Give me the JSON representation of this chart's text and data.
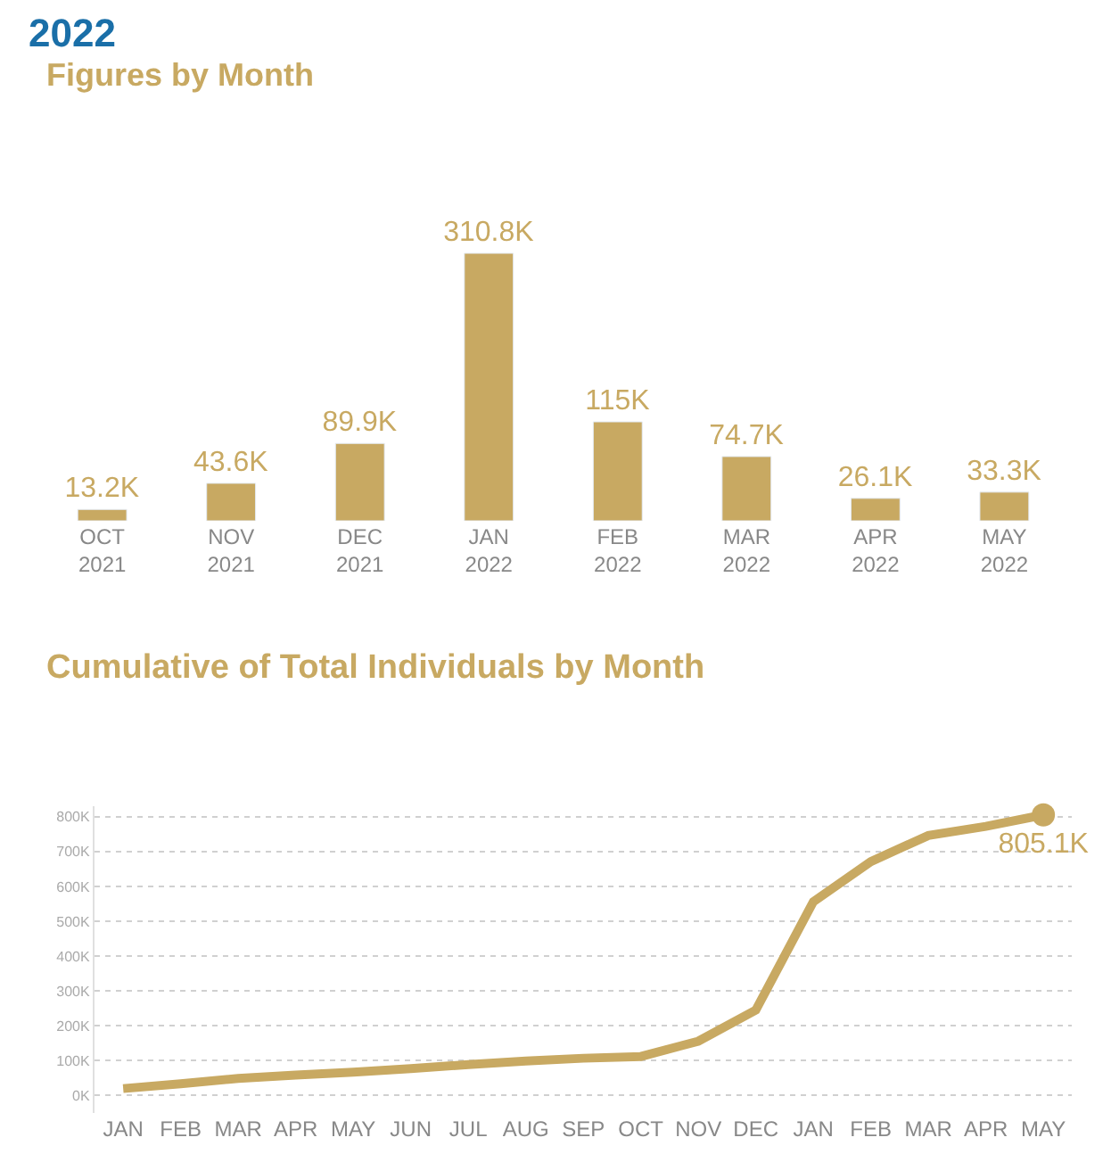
{
  "chart_data": [
    {
      "type": "bar",
      "title": "2022",
      "subtitle": "Figures by Month",
      "categories": [
        "OCT 2021",
        "NOV 2021",
        "DEC 2021",
        "JAN 2022",
        "FEB 2022",
        "MAR 2022",
        "APR 2022",
        "MAY 2022"
      ],
      "values": [
        13.2,
        43.6,
        89.9,
        310.8,
        115,
        74.7,
        26.1,
        33.3
      ],
      "value_labels": [
        "13.2K",
        "43.6K",
        "89.9K",
        "310.8K",
        "115K",
        "74.7K",
        "26.1K",
        "33.3K"
      ],
      "color": "#c8a962",
      "grid": false,
      "legend": false
    },
    {
      "type": "line",
      "title": "Cumulative of Total Individuals by Month",
      "categories": [
        "JAN",
        "FEB",
        "MAR",
        "APR",
        "MAY",
        "JUN",
        "JUL",
        "AUG",
        "SEP",
        "OCT",
        "NOV",
        "DEC",
        "JAN",
        "FEB",
        "MAR",
        "APR",
        "MAY"
      ],
      "series": [
        {
          "color": "#c8a962",
          "values": [
            20,
            34,
            49,
            59,
            67,
            77,
            89,
            99,
            107,
            112,
            156,
            245,
            556,
            671,
            746,
            772,
            805.1
          ],
          "value_labels": [
            null,
            null,
            null,
            null,
            null,
            null,
            null,
            null,
            null,
            null,
            null,
            null,
            null,
            null,
            null,
            null,
            "805.1K"
          ]
        }
      ],
      "ylim": [
        -50,
        830
      ],
      "yticks": [
        {
          "value": 0,
          "label": "0K"
        },
        {
          "value": 100,
          "label": "100K"
        },
        {
          "value": 200,
          "label": "200K"
        },
        {
          "value": 300,
          "label": "300K"
        },
        {
          "value": 400,
          "label": "400K"
        },
        {
          "value": 500,
          "label": "500K"
        },
        {
          "value": 600,
          "label": "600K"
        },
        {
          "value": 700,
          "label": "700K"
        },
        {
          "value": 800,
          "label": "800K"
        }
      ],
      "grid": "y",
      "legend": false,
      "line_style": "solid"
    }
  ]
}
